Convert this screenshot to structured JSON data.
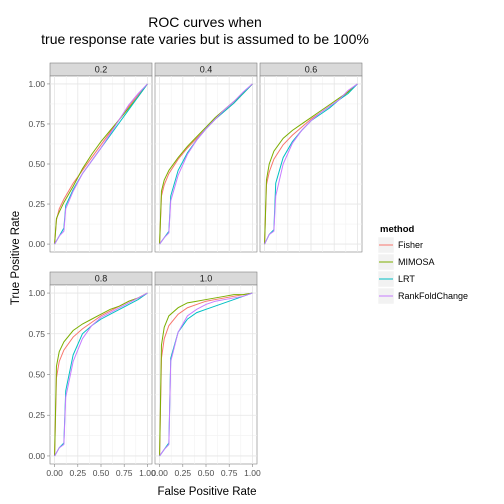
{
  "chart_data": {
    "type": "line",
    "title_lines": [
      "ROC curves when",
      "true response rate varies but is assumed to be 100%"
    ],
    "xlabel": "False Positive Rate",
    "ylabel": "True Positive Rate",
    "xlim": [
      0,
      1
    ],
    "ylim": [
      0,
      1
    ],
    "x_ticks": [
      0,
      0.25,
      0.5,
      0.75,
      1
    ],
    "x_tick_labels": [
      "0.00",
      "0.25",
      "0.50",
      "0.75",
      "1.00"
    ],
    "y_ticks": [
      0,
      0.25,
      0.5,
      0.75,
      1
    ],
    "y_tick_labels": [
      "0.00",
      "0.25",
      "0.50",
      "0.75",
      "1.00"
    ],
    "grid": true,
    "legend": {
      "title": "method",
      "position": "right",
      "entries": [
        {
          "name": "Fisher",
          "color": "#F8766D"
        },
        {
          "name": "MIMOSA",
          "color": "#7CAE00"
        },
        {
          "name": "LRT",
          "color": "#00BFC4"
        },
        {
          "name": "RankFoldChange",
          "color": "#C77CFF"
        }
      ]
    },
    "panels": [
      {
        "label": "0.2",
        "series": [
          {
            "name": "Fisher",
            "x": [
              0,
              0.02,
              0.05,
              0.1,
              0.2,
              0.3,
              0.4,
              0.5,
              0.6,
              0.7,
              0.8,
              0.9,
              1
            ],
            "y": [
              0,
              0.15,
              0.22,
              0.28,
              0.38,
              0.46,
              0.54,
              0.62,
              0.7,
              0.78,
              0.86,
              0.93,
              1
            ]
          },
          {
            "name": "MIMOSA",
            "x": [
              0,
              0.02,
              0.05,
              0.1,
              0.2,
              0.3,
              0.4,
              0.5,
              0.6,
              0.7,
              0.8,
              0.9,
              1
            ],
            "y": [
              0,
              0.16,
              0.2,
              0.26,
              0.36,
              0.47,
              0.56,
              0.64,
              0.71,
              0.78,
              0.85,
              0.92,
              1
            ]
          },
          {
            "name": "LRT",
            "x": [
              0,
              0.05,
              0.1,
              0.12,
              0.2,
              0.3,
              0.4,
              0.5,
              0.6,
              0.7,
              0.8,
              0.9,
              1
            ],
            "y": [
              0,
              0.05,
              0.1,
              0.24,
              0.34,
              0.44,
              0.52,
              0.6,
              0.68,
              0.76,
              0.84,
              0.92,
              1
            ]
          },
          {
            "name": "RankFoldChange",
            "x": [
              0,
              0.05,
              0.1,
              0.12,
              0.2,
              0.3,
              0.4,
              0.5,
              0.6,
              0.7,
              0.8,
              0.9,
              1
            ],
            "y": [
              0,
              0.05,
              0.08,
              0.22,
              0.33,
              0.44,
              0.52,
              0.6,
              0.69,
              0.78,
              0.87,
              0.94,
              1
            ]
          }
        ]
      },
      {
        "label": "0.4",
        "series": [
          {
            "name": "Fisher",
            "x": [
              0,
              0.02,
              0.05,
              0.1,
              0.2,
              0.3,
              0.4,
              0.5,
              0.6,
              0.7,
              0.8,
              0.9,
              1
            ],
            "y": [
              0,
              0.3,
              0.37,
              0.44,
              0.53,
              0.6,
              0.66,
              0.72,
              0.78,
              0.83,
              0.88,
              0.94,
              1
            ]
          },
          {
            "name": "MIMOSA",
            "x": [
              0,
              0.02,
              0.05,
              0.1,
              0.2,
              0.3,
              0.4,
              0.5,
              0.6,
              0.7,
              0.8,
              0.9,
              1
            ],
            "y": [
              0,
              0.33,
              0.4,
              0.46,
              0.54,
              0.61,
              0.67,
              0.73,
              0.79,
              0.84,
              0.89,
              0.94,
              1
            ]
          },
          {
            "name": "LRT",
            "x": [
              0,
              0.05,
              0.1,
              0.12,
              0.2,
              0.3,
              0.4,
              0.5,
              0.6,
              0.7,
              0.8,
              0.9,
              1
            ],
            "y": [
              0,
              0.04,
              0.08,
              0.3,
              0.46,
              0.57,
              0.65,
              0.72,
              0.78,
              0.83,
              0.88,
              0.94,
              1
            ]
          },
          {
            "name": "RankFoldChange",
            "x": [
              0,
              0.05,
              0.1,
              0.12,
              0.2,
              0.3,
              0.4,
              0.5,
              0.6,
              0.7,
              0.8,
              0.9,
              1
            ],
            "y": [
              0,
              0.04,
              0.07,
              0.27,
              0.43,
              0.56,
              0.65,
              0.72,
              0.78,
              0.84,
              0.89,
              0.95,
              1
            ]
          }
        ]
      },
      {
        "label": "0.6",
        "series": [
          {
            "name": "Fisher",
            "x": [
              0,
              0.02,
              0.05,
              0.1,
              0.2,
              0.3,
              0.4,
              0.5,
              0.6,
              0.7,
              0.8,
              0.9,
              1
            ],
            "y": [
              0,
              0.37,
              0.45,
              0.53,
              0.62,
              0.68,
              0.73,
              0.78,
              0.82,
              0.86,
              0.9,
              0.95,
              1
            ]
          },
          {
            "name": "MIMOSA",
            "x": [
              0,
              0.02,
              0.05,
              0.1,
              0.2,
              0.3,
              0.4,
              0.5,
              0.6,
              0.7,
              0.8,
              0.9,
              1
            ],
            "y": [
              0,
              0.4,
              0.5,
              0.58,
              0.66,
              0.71,
              0.75,
              0.79,
              0.83,
              0.87,
              0.91,
              0.95,
              1
            ]
          },
          {
            "name": "LRT",
            "x": [
              0,
              0.05,
              0.1,
              0.12,
              0.2,
              0.3,
              0.4,
              0.5,
              0.6,
              0.7,
              0.8,
              0.9,
              1
            ],
            "y": [
              0,
              0.06,
              0.09,
              0.38,
              0.54,
              0.64,
              0.71,
              0.77,
              0.81,
              0.85,
              0.9,
              0.94,
              1
            ]
          },
          {
            "name": "RankFoldChange",
            "x": [
              0,
              0.05,
              0.1,
              0.12,
              0.2,
              0.3,
              0.4,
              0.5,
              0.6,
              0.7,
              0.8,
              0.9,
              1
            ],
            "y": [
              0,
              0.06,
              0.08,
              0.3,
              0.5,
              0.63,
              0.71,
              0.77,
              0.82,
              0.86,
              0.9,
              0.96,
              1
            ]
          }
        ]
      },
      {
        "label": "0.8",
        "series": [
          {
            "name": "Fisher",
            "x": [
              0,
              0.02,
              0.05,
              0.1,
              0.2,
              0.3,
              0.4,
              0.5,
              0.6,
              0.7,
              0.8,
              0.9,
              1
            ],
            "y": [
              0,
              0.48,
              0.58,
              0.65,
              0.73,
              0.78,
              0.82,
              0.86,
              0.89,
              0.92,
              0.95,
              0.97,
              1
            ]
          },
          {
            "name": "MIMOSA",
            "x": [
              0,
              0.02,
              0.05,
              0.1,
              0.2,
              0.3,
              0.4,
              0.5,
              0.6,
              0.7,
              0.8,
              0.9,
              1
            ],
            "y": [
              0,
              0.55,
              0.64,
              0.7,
              0.77,
              0.81,
              0.84,
              0.87,
              0.9,
              0.92,
              0.95,
              0.97,
              1
            ]
          },
          {
            "name": "LRT",
            "x": [
              0,
              0.05,
              0.1,
              0.12,
              0.2,
              0.3,
              0.4,
              0.5,
              0.6,
              0.7,
              0.8,
              0.9,
              1
            ],
            "y": [
              0,
              0.05,
              0.08,
              0.4,
              0.62,
              0.75,
              0.8,
              0.84,
              0.87,
              0.9,
              0.93,
              0.96,
              1
            ]
          },
          {
            "name": "RankFoldChange",
            "x": [
              0,
              0.05,
              0.1,
              0.12,
              0.2,
              0.3,
              0.4,
              0.5,
              0.6,
              0.7,
              0.8,
              0.9,
              1
            ],
            "y": [
              0,
              0.05,
              0.07,
              0.36,
              0.58,
              0.72,
              0.8,
              0.85,
              0.88,
              0.91,
              0.94,
              0.97,
              1
            ]
          }
        ]
      },
      {
        "label": "1.0",
        "series": [
          {
            "name": "Fisher",
            "x": [
              0,
              0.02,
              0.05,
              0.1,
              0.2,
              0.3,
              0.4,
              0.5,
              0.6,
              0.7,
              0.8,
              0.9,
              1
            ],
            "y": [
              0,
              0.6,
              0.72,
              0.8,
              0.87,
              0.91,
              0.93,
              0.95,
              0.96,
              0.97,
              0.98,
              0.99,
              1
            ]
          },
          {
            "name": "MIMOSA",
            "x": [
              0,
              0.02,
              0.05,
              0.1,
              0.2,
              0.3,
              0.4,
              0.5,
              0.6,
              0.7,
              0.8,
              0.9,
              1
            ],
            "y": [
              0,
              0.68,
              0.79,
              0.86,
              0.91,
              0.94,
              0.95,
              0.96,
              0.97,
              0.98,
              0.99,
              0.99,
              1
            ]
          },
          {
            "name": "LRT",
            "x": [
              0,
              0.05,
              0.1,
              0.12,
              0.2,
              0.3,
              0.4,
              0.5,
              0.6,
              0.7,
              0.8,
              0.9,
              1
            ],
            "y": [
              0,
              0.04,
              0.08,
              0.6,
              0.76,
              0.84,
              0.88,
              0.9,
              0.92,
              0.94,
              0.96,
              0.98,
              1
            ]
          },
          {
            "name": "RankFoldChange",
            "x": [
              0,
              0.05,
              0.1,
              0.12,
              0.2,
              0.3,
              0.4,
              0.5,
              0.6,
              0.7,
              0.8,
              0.9,
              1
            ],
            "y": [
              0,
              0.04,
              0.07,
              0.58,
              0.76,
              0.86,
              0.9,
              0.93,
              0.95,
              0.96,
              0.97,
              0.98,
              1
            ]
          }
        ]
      }
    ]
  }
}
